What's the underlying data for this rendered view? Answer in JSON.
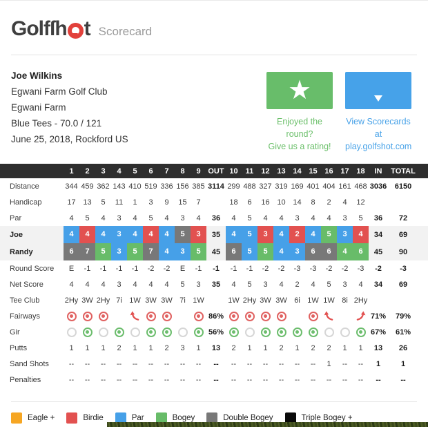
{
  "brand": {
    "logo_prefix": "Golfſh",
    "logo_suffix": "t",
    "subtitle": "Scorecard"
  },
  "player": {
    "name": "Joe Wilkins",
    "club": "Egwani Farm Golf Club",
    "course": "Egwani Farm",
    "tees": "Blue Tees - 70.0 / 121",
    "date": "June 25, 2018, Rockford US"
  },
  "rating_badge": {
    "caption_line1": "Enjoyed the round?",
    "caption_line2": "Give us a rating!"
  },
  "scorecards_badge": {
    "caption_line1": "View Scorecards at",
    "caption_line2": "play.golfshot.com"
  },
  "score_colors": {
    "eagle": "#f6a623",
    "birdie": "#e25150",
    "par": "#46a0e8",
    "bogey": "#68bc69",
    "double": "#787878",
    "triple": "#0a0a0a"
  },
  "scorecard": {
    "columns": [
      "1",
      "2",
      "3",
      "4",
      "5",
      "6",
      "7",
      "8",
      "9",
      "OUT",
      "10",
      "11",
      "12",
      "13",
      "14",
      "15",
      "16",
      "17",
      "18",
      "IN",
      "TOTAL"
    ],
    "rows": [
      {
        "label": "Distance",
        "kind": "text",
        "values": [
          "344",
          "459",
          "362",
          "143",
          "410",
          "519",
          "336",
          "156",
          "385",
          "3114",
          "299",
          "488",
          "327",
          "319",
          "169",
          "401",
          "404",
          "161",
          "468",
          "3036",
          "6150"
        ]
      },
      {
        "label": "Handicap",
        "kind": "text",
        "values": [
          "17",
          "13",
          "5",
          "11",
          "1",
          "3",
          "9",
          "15",
          "7",
          "",
          "18",
          "6",
          "16",
          "10",
          "14",
          "8",
          "2",
          "4",
          "12",
          "",
          ""
        ]
      },
      {
        "label": "Par",
        "kind": "text",
        "values": [
          "4",
          "5",
          "4",
          "3",
          "4",
          "5",
          "4",
          "3",
          "4",
          "36",
          "4",
          "5",
          "4",
          "4",
          "3",
          "4",
          "4",
          "3",
          "5",
          "36",
          "72"
        ]
      },
      {
        "label": "Joe",
        "kind": "score",
        "shaded": true,
        "values": [
          "4",
          "4",
          "4",
          "3",
          "4",
          "4",
          "4",
          "5",
          "3",
          "35",
          "4",
          "5",
          "3",
          "4",
          "2",
          "4",
          "5",
          "3",
          "4",
          "34",
          "69"
        ],
        "colors": [
          "par",
          "birdie",
          "par",
          "par",
          "par",
          "birdie",
          "par",
          "double",
          "birdie",
          "",
          "par",
          "par",
          "birdie",
          "par",
          "birdie",
          "par",
          "bogey",
          "par",
          "birdie",
          "",
          ""
        ]
      },
      {
        "label": "Randy",
        "kind": "score",
        "shaded": true,
        "values": [
          "6",
          "7",
          "5",
          "3",
          "5",
          "7",
          "4",
          "3",
          "5",
          "45",
          "6",
          "5",
          "5",
          "4",
          "3",
          "6",
          "6",
          "4",
          "6",
          "45",
          "90"
        ],
        "colors": [
          "double",
          "double",
          "bogey",
          "par",
          "bogey",
          "double",
          "par",
          "par",
          "bogey",
          "",
          "double",
          "par",
          "bogey",
          "par",
          "par",
          "double",
          "double",
          "bogey",
          "bogey",
          "",
          ""
        ]
      },
      {
        "label": "Round Score",
        "kind": "text",
        "values": [
          "E",
          "-1",
          "-1",
          "-1",
          "-1",
          "-2",
          "-2",
          "E",
          "-1",
          "-1",
          "-1",
          "-1",
          "-2",
          "-2",
          "-3",
          "-3",
          "-2",
          "-2",
          "-3",
          "-2",
          "-3"
        ]
      },
      {
        "label": "Net Score",
        "kind": "text",
        "values": [
          "4",
          "4",
          "4",
          "3",
          "4",
          "4",
          "4",
          "5",
          "3",
          "35",
          "4",
          "5",
          "3",
          "4",
          "2",
          "4",
          "5",
          "3",
          "4",
          "34",
          "69"
        ]
      },
      {
        "label": "Tee Club",
        "kind": "text",
        "values": [
          "2Hy",
          "3W",
          "2Hy",
          "7i",
          "1W",
          "3W",
          "3W",
          "7i",
          "1W",
          "",
          "1W",
          "2Hy",
          "3W",
          "3W",
          "6i",
          "1W",
          "1W",
          "8i",
          "2Hy",
          "",
          ""
        ]
      },
      {
        "label": "Fairways",
        "kind": "icon",
        "values": [
          "fw-hit",
          "fw-hit",
          "fw-hit",
          "",
          "fw-miss-left",
          "fw-hit",
          "fw-hit",
          "",
          "fw-hit",
          "86%",
          "fw-hit",
          "fw-hit",
          "fw-hit",
          "fw-hit",
          "",
          "fw-hit",
          "fw-miss-left",
          "",
          "fw-miss-right",
          "71%",
          "79%"
        ]
      },
      {
        "label": "Gir",
        "kind": "icon",
        "values": [
          "gir-miss",
          "gir-hit",
          "gir-miss",
          "gir-hit",
          "gir-miss",
          "gir-hit",
          "gir-hit",
          "gir-miss",
          "gir-hit",
          "56%",
          "gir-hit",
          "gir-miss",
          "gir-hit",
          "gir-hit",
          "gir-hit",
          "gir-hit",
          "gir-miss",
          "gir-miss",
          "gir-hit",
          "67%",
          "61%"
        ]
      },
      {
        "label": "Putts",
        "kind": "text",
        "values": [
          "1",
          "1",
          "1",
          "2",
          "1",
          "1",
          "2",
          "3",
          "1",
          "13",
          "2",
          "1",
          "1",
          "2",
          "1",
          "2",
          "2",
          "1",
          "1",
          "13",
          "26"
        ]
      },
      {
        "label": "Sand Shots",
        "kind": "text",
        "values": [
          "--",
          "--",
          "--",
          "--",
          "--",
          "--",
          "--",
          "--",
          "--",
          "--",
          "--",
          "--",
          "--",
          "--",
          "--",
          "--",
          "1",
          "--",
          "--",
          "1",
          "1"
        ]
      },
      {
        "label": "Penalties",
        "kind": "text",
        "values": [
          "--",
          "--",
          "--",
          "--",
          "--",
          "--",
          "--",
          "--",
          "--",
          "--",
          "--",
          "--",
          "--",
          "--",
          "--",
          "--",
          "--",
          "--",
          "--",
          "--",
          "--"
        ]
      }
    ]
  },
  "legend": [
    {
      "label": "Eagle +",
      "color": "#f6a623"
    },
    {
      "label": "Birdie",
      "color": "#e25150"
    },
    {
      "label": "Par",
      "color": "#46a0e8"
    },
    {
      "label": "Bogey",
      "color": "#68bc69"
    },
    {
      "label": "Double Bogey",
      "color": "#787878"
    },
    {
      "label": "Triple Bogey +",
      "color": "#0a0a0a"
    }
  ]
}
